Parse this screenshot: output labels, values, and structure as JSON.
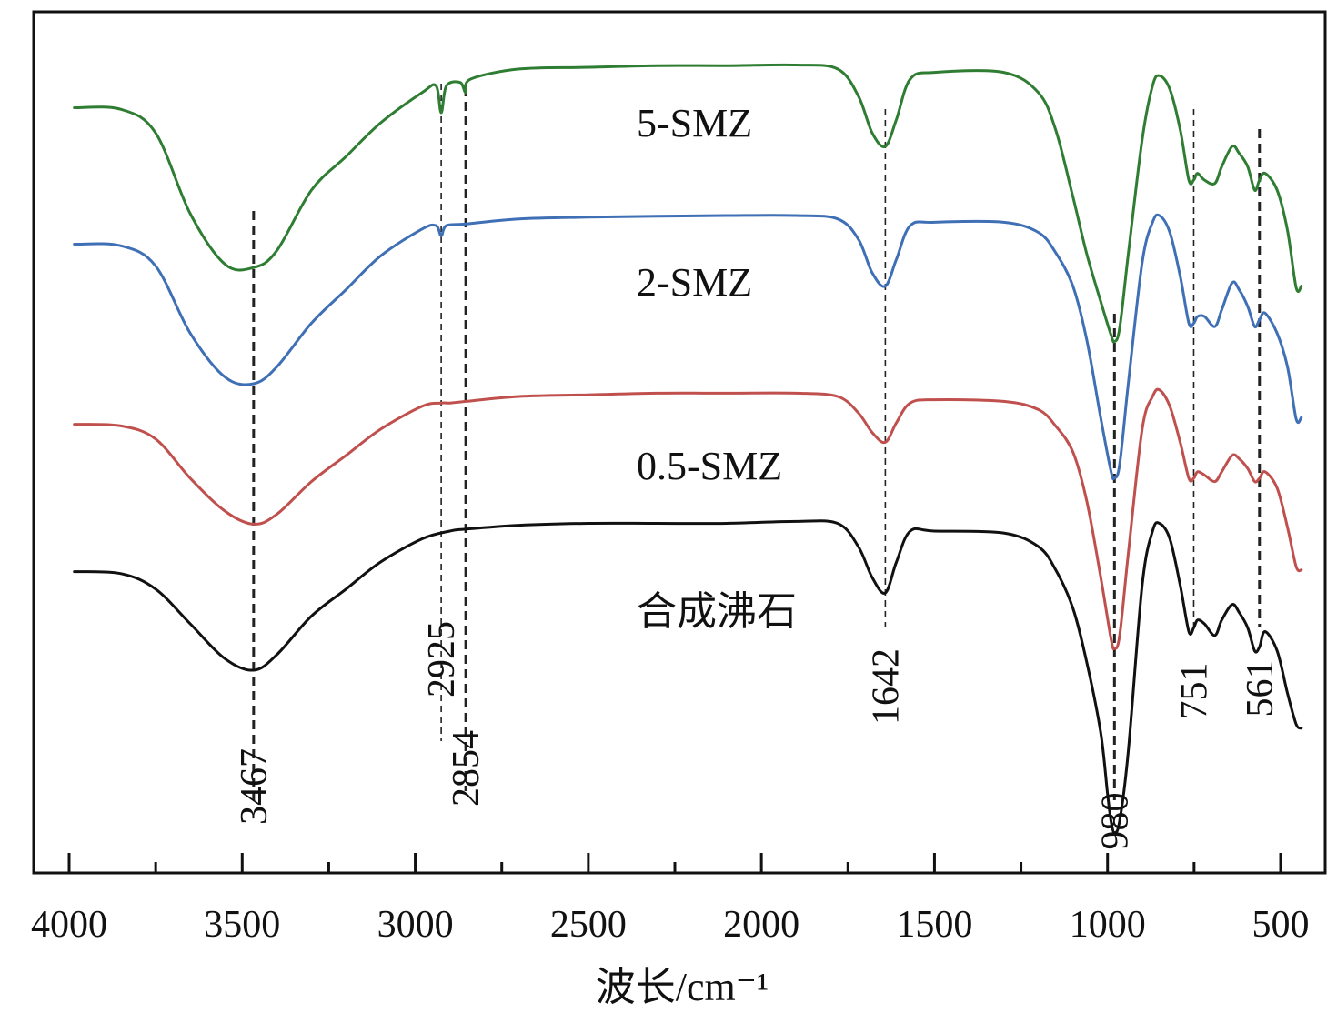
{
  "chart_data": {
    "type": "line",
    "title": "",
    "xlabel": "波长/cm⁻¹",
    "ylabel": "",
    "x_axis": {
      "range": [
        4000,
        420
      ],
      "reversed": true,
      "ticks": [
        4000,
        3500,
        3000,
        2500,
        2000,
        1500,
        1000,
        500
      ],
      "tick_labels": [
        "4000",
        "3500",
        "3000",
        "2500",
        "2000",
        "1500",
        "1000",
        "500"
      ]
    },
    "y_axis": {
      "visible": false,
      "units": "transmittance (a.u., stacked with offsets)"
    },
    "grid": false,
    "series": [
      {
        "name": "5-SMZ",
        "color": "#2e7d32",
        "points": [
          [
            3985,
            0.815
          ],
          [
            3850,
            0.81
          ],
          [
            3750,
            0.74
          ],
          [
            3650,
            0.5
          ],
          [
            3550,
            0.35
          ],
          [
            3467,
            0.34
          ],
          [
            3400,
            0.39
          ],
          [
            3300,
            0.57
          ],
          [
            3200,
            0.67
          ],
          [
            3100,
            0.77
          ],
          [
            2980,
            0.86
          ],
          [
            2940,
            0.88
          ],
          [
            2925,
            0.8
          ],
          [
            2910,
            0.88
          ],
          [
            2870,
            0.89
          ],
          [
            2854,
            0.86
          ],
          [
            2840,
            0.9
          ],
          [
            2700,
            0.93
          ],
          [
            2500,
            0.935
          ],
          [
            2300,
            0.94
          ],
          [
            2100,
            0.94
          ],
          [
            1900,
            0.942
          ],
          [
            1780,
            0.93
          ],
          [
            1720,
            0.85
          ],
          [
            1680,
            0.74
          ],
          [
            1642,
            0.7
          ],
          [
            1610,
            0.78
          ],
          [
            1570,
            0.9
          ],
          [
            1500,
            0.92
          ],
          [
            1300,
            0.92
          ],
          [
            1200,
            0.86
          ],
          [
            1150,
            0.75
          ],
          [
            1100,
            0.55
          ],
          [
            1060,
            0.38
          ],
          [
            1020,
            0.24
          ],
          [
            990,
            0.14
          ],
          [
            980,
            0.12
          ],
          [
            965,
            0.16
          ],
          [
            940,
            0.38
          ],
          [
            900,
            0.72
          ],
          [
            870,
            0.88
          ],
          [
            850,
            0.91
          ],
          [
            820,
            0.87
          ],
          [
            790,
            0.75
          ],
          [
            765,
            0.6
          ],
          [
            751,
            0.6
          ],
          [
            740,
            0.62
          ],
          [
            720,
            0.6
          ],
          [
            690,
            0.59
          ],
          [
            670,
            0.64
          ],
          [
            640,
            0.7
          ],
          [
            620,
            0.68
          ],
          [
            595,
            0.64
          ],
          [
            575,
            0.57
          ],
          [
            561,
            0.6
          ],
          [
            545,
            0.62
          ],
          [
            510,
            0.57
          ],
          [
            480,
            0.45
          ],
          [
            455,
            0.28
          ],
          [
            440,
            0.285
          ]
        ]
      },
      {
        "name": "2-SMZ",
        "color": "#3f6fb5",
        "points": [
          [
            3985,
            0.815
          ],
          [
            3850,
            0.81
          ],
          [
            3750,
            0.75
          ],
          [
            3650,
            0.55
          ],
          [
            3550,
            0.42
          ],
          [
            3467,
            0.4
          ],
          [
            3400,
            0.45
          ],
          [
            3300,
            0.58
          ],
          [
            3200,
            0.68
          ],
          [
            3100,
            0.78
          ],
          [
            2980,
            0.86
          ],
          [
            2940,
            0.87
          ],
          [
            2925,
            0.84
          ],
          [
            2910,
            0.87
          ],
          [
            2854,
            0.875
          ],
          [
            2700,
            0.89
          ],
          [
            2500,
            0.895
          ],
          [
            2300,
            0.898
          ],
          [
            2100,
            0.9
          ],
          [
            1900,
            0.9
          ],
          [
            1780,
            0.89
          ],
          [
            1720,
            0.83
          ],
          [
            1680,
            0.73
          ],
          [
            1642,
            0.69
          ],
          [
            1610,
            0.77
          ],
          [
            1570,
            0.87
          ],
          [
            1500,
            0.88
          ],
          [
            1300,
            0.88
          ],
          [
            1200,
            0.85
          ],
          [
            1150,
            0.79
          ],
          [
            1100,
            0.69
          ],
          [
            1060,
            0.53
          ],
          [
            1020,
            0.3
          ],
          [
            990,
            0.14
          ],
          [
            980,
            0.12
          ],
          [
            965,
            0.16
          ],
          [
            940,
            0.4
          ],
          [
            900,
            0.76
          ],
          [
            870,
            0.88
          ],
          [
            850,
            0.9
          ],
          [
            820,
            0.85
          ],
          [
            790,
            0.72
          ],
          [
            765,
            0.58
          ],
          [
            751,
            0.58
          ],
          [
            740,
            0.6
          ],
          [
            720,
            0.6
          ],
          [
            690,
            0.57
          ],
          [
            670,
            0.62
          ],
          [
            640,
            0.7
          ],
          [
            620,
            0.68
          ],
          [
            595,
            0.63
          ],
          [
            575,
            0.57
          ],
          [
            561,
            0.59
          ],
          [
            545,
            0.61
          ],
          [
            510,
            0.55
          ],
          [
            480,
            0.45
          ],
          [
            455,
            0.295
          ],
          [
            440,
            0.3
          ]
        ]
      },
      {
        "name": "0.5-SMZ",
        "color": "#c0504d",
        "points": [
          [
            3985,
            0.815
          ],
          [
            3850,
            0.81
          ],
          [
            3750,
            0.77
          ],
          [
            3650,
            0.65
          ],
          [
            3550,
            0.55
          ],
          [
            3467,
            0.51
          ],
          [
            3400,
            0.54
          ],
          [
            3300,
            0.64
          ],
          [
            3200,
            0.72
          ],
          [
            3100,
            0.8
          ],
          [
            2980,
            0.87
          ],
          [
            2925,
            0.88
          ],
          [
            2900,
            0.88
          ],
          [
            2854,
            0.885
          ],
          [
            2700,
            0.9
          ],
          [
            2500,
            0.905
          ],
          [
            2300,
            0.91
          ],
          [
            2100,
            0.91
          ],
          [
            1900,
            0.91
          ],
          [
            1780,
            0.9
          ],
          [
            1720,
            0.85
          ],
          [
            1680,
            0.79
          ],
          [
            1642,
            0.76
          ],
          [
            1610,
            0.82
          ],
          [
            1570,
            0.88
          ],
          [
            1500,
            0.89
          ],
          [
            1300,
            0.885
          ],
          [
            1200,
            0.86
          ],
          [
            1150,
            0.81
          ],
          [
            1100,
            0.73
          ],
          [
            1060,
            0.58
          ],
          [
            1020,
            0.35
          ],
          [
            990,
            0.16
          ],
          [
            980,
            0.13
          ],
          [
            965,
            0.17
          ],
          [
            940,
            0.42
          ],
          [
            900,
            0.8
          ],
          [
            870,
            0.9
          ],
          [
            850,
            0.92
          ],
          [
            820,
            0.87
          ],
          [
            790,
            0.76
          ],
          [
            765,
            0.65
          ],
          [
            751,
            0.65
          ],
          [
            740,
            0.67
          ],
          [
            720,
            0.66
          ],
          [
            690,
            0.64
          ],
          [
            670,
            0.67
          ],
          [
            640,
            0.72
          ],
          [
            620,
            0.71
          ],
          [
            595,
            0.68
          ],
          [
            575,
            0.64
          ],
          [
            561,
            0.65
          ],
          [
            545,
            0.67
          ],
          [
            510,
            0.62
          ],
          [
            480,
            0.5
          ],
          [
            455,
            0.38
          ],
          [
            440,
            0.37
          ]
        ]
      },
      {
        "name": "合成沸石",
        "color": "#111111",
        "points": [
          [
            3985,
            0.815
          ],
          [
            3850,
            0.81
          ],
          [
            3750,
            0.77
          ],
          [
            3650,
            0.68
          ],
          [
            3550,
            0.59
          ],
          [
            3467,
            0.56
          ],
          [
            3400,
            0.6
          ],
          [
            3300,
            0.7
          ],
          [
            3200,
            0.77
          ],
          [
            3100,
            0.84
          ],
          [
            2980,
            0.9
          ],
          [
            2900,
            0.92
          ],
          [
            2854,
            0.925
          ],
          [
            2700,
            0.935
          ],
          [
            2500,
            0.94
          ],
          [
            2300,
            0.94
          ],
          [
            2100,
            0.94
          ],
          [
            1900,
            0.945
          ],
          [
            1780,
            0.94
          ],
          [
            1720,
            0.88
          ],
          [
            1680,
            0.8
          ],
          [
            1642,
            0.76
          ],
          [
            1610,
            0.84
          ],
          [
            1570,
            0.92
          ],
          [
            1500,
            0.92
          ],
          [
            1300,
            0.915
          ],
          [
            1200,
            0.88
          ],
          [
            1150,
            0.82
          ],
          [
            1100,
            0.72
          ],
          [
            1060,
            0.58
          ],
          [
            1020,
            0.4
          ],
          [
            1000,
            0.24
          ],
          [
            990,
            0.17
          ],
          [
            980,
            0.14
          ],
          [
            965,
            0.17
          ],
          [
            940,
            0.35
          ],
          [
            900,
            0.78
          ],
          [
            870,
            0.92
          ],
          [
            850,
            0.94
          ],
          [
            820,
            0.9
          ],
          [
            790,
            0.78
          ],
          [
            765,
            0.66
          ],
          [
            751,
            0.67
          ],
          [
            740,
            0.69
          ],
          [
            720,
            0.68
          ],
          [
            690,
            0.65
          ],
          [
            670,
            0.69
          ],
          [
            640,
            0.73
          ],
          [
            620,
            0.71
          ],
          [
            595,
            0.67
          ],
          [
            575,
            0.61
          ],
          [
            561,
            0.62
          ],
          [
            545,
            0.66
          ],
          [
            510,
            0.61
          ],
          [
            480,
            0.5
          ],
          [
            455,
            0.42
          ],
          [
            440,
            0.41
          ]
        ]
      }
    ],
    "series_labels": [
      {
        "text": "5-SMZ",
        "x": 2030,
        "series": "5-SMZ"
      },
      {
        "text": "2-SMZ",
        "x": 2030,
        "series": "2-SMZ"
      },
      {
        "text": "0.5-SMZ",
        "x": 2030,
        "series": "0.5-SMZ"
      },
      {
        "text": "合成沸石",
        "x": 2030,
        "series": "合成沸石"
      }
    ],
    "peak_markers": [
      {
        "wavenumber": 3467,
        "label": "3467",
        "style": "bold-dash"
      },
      {
        "wavenumber": 2925,
        "label": "2925",
        "style": "thin-dash"
      },
      {
        "wavenumber": 2854,
        "label": "2854",
        "style": "bold-dash"
      },
      {
        "wavenumber": 1642,
        "label": "1642",
        "style": "thin-dash"
      },
      {
        "wavenumber": 980,
        "label": "980",
        "style": "bold-dash"
      },
      {
        "wavenumber": 751,
        "label": "751",
        "style": "thin-dash"
      },
      {
        "wavenumber": 561,
        "label": "561",
        "style": "bold-dash"
      }
    ]
  }
}
